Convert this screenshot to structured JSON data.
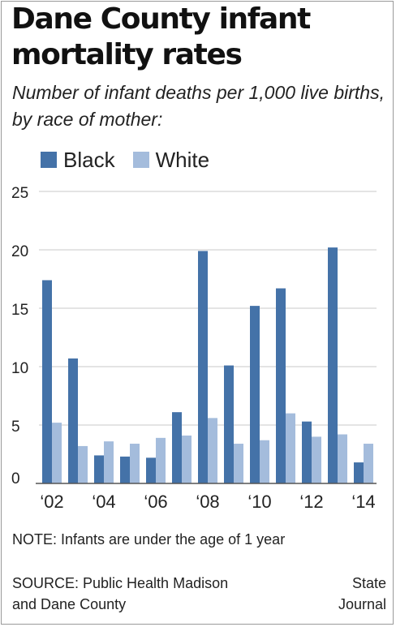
{
  "header": {
    "title": "Dane County infant mortality rates",
    "subtitle": "Number of infant deaths per 1,000 live births, by race of mother:"
  },
  "colors": {
    "black": "#4472a8",
    "white": "#a4bcdc",
    "grid": "#c8c8c8",
    "axis": "#555555"
  },
  "chart_data": {
    "type": "bar",
    "title": "Dane County infant mortality rates",
    "subtitle": "Number of infant deaths per 1,000 live births, by race of mother:",
    "categories": [
      "2002",
      "2003",
      "2004",
      "2005",
      "2006",
      "2007",
      "2008",
      "2009",
      "2010",
      "2011",
      "2012",
      "2013",
      "2014"
    ],
    "tick_labels": [
      "‘02",
      "",
      "‘04",
      "",
      "‘06",
      "",
      "‘08",
      "",
      "‘10",
      "",
      "‘12",
      "",
      "‘14"
    ],
    "series": [
      {
        "name": "Black",
        "values": [
          17.4,
          10.7,
          2.4,
          2.3,
          2.2,
          6.1,
          19.9,
          10.1,
          15.2,
          16.7,
          5.3,
          20.2,
          1.8
        ]
      },
      {
        "name": "White",
        "values": [
          5.2,
          3.2,
          3.6,
          3.4,
          3.9,
          4.1,
          5.6,
          3.4,
          3.7,
          6.0,
          4.0,
          4.2,
          3.4
        ]
      }
    ],
    "ylim": [
      0,
      25
    ],
    "yticks": [
      0,
      5,
      10,
      15,
      20,
      25
    ],
    "grid": true,
    "legend": "top-left"
  },
  "footer": {
    "note": "NOTE: Infants are under the age of 1 year",
    "source_line1": "SOURCE: Public Health Madison",
    "source_line2": "and Dane County",
    "credit_line1": "State",
    "credit_line2": "Journal"
  }
}
